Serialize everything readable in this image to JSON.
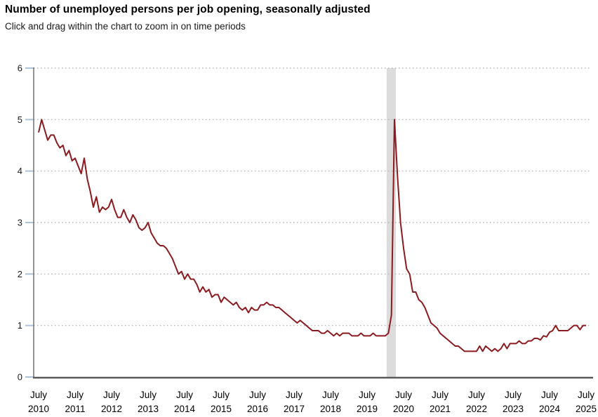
{
  "header": {
    "title": "Number of unemployed persons per job opening, seasonally adjusted",
    "subtitle": "Click and drag within the chart to zoom in on time periods"
  },
  "chart_data": {
    "type": "line",
    "title": "Number of unemployed persons per job opening, seasonally adjusted",
    "subtitle": "Click and drag within the chart to zoom in on time periods",
    "ylabel": "",
    "xlabel": "",
    "ylim": [
      0,
      6
    ],
    "y_ticks": [
      0,
      1,
      2,
      3,
      4,
      5,
      6
    ],
    "x_ticks": [
      {
        "month": "July",
        "year": "2010"
      },
      {
        "month": "July",
        "year": "2011"
      },
      {
        "month": "July",
        "year": "2012"
      },
      {
        "month": "July",
        "year": "2013"
      },
      {
        "month": "July",
        "year": "2014"
      },
      {
        "month": "July",
        "year": "2015"
      },
      {
        "month": "July",
        "year": "2016"
      },
      {
        "month": "July",
        "year": "2017"
      },
      {
        "month": "July",
        "year": "2018"
      },
      {
        "month": "July",
        "year": "2019"
      },
      {
        "month": "July",
        "year": "2020"
      },
      {
        "month": "July",
        "year": "2021"
      },
      {
        "month": "July",
        "year": "2022"
      },
      {
        "month": "July",
        "year": "2023"
      },
      {
        "month": "July",
        "year": "2024"
      },
      {
        "month": "July",
        "year": "2025"
      }
    ],
    "grid": "dotted-horizontal",
    "legend": "none",
    "recession_band": {
      "from": "2020-02",
      "to": "2020-04"
    },
    "series": [
      {
        "name": "Unemployed persons per job opening",
        "start": "2010-07",
        "end": "2025-07",
        "frequency": "monthly",
        "values": [
          4.75,
          5.0,
          4.8,
          4.6,
          4.7,
          4.7,
          4.55,
          4.45,
          4.5,
          4.3,
          4.4,
          4.2,
          4.25,
          4.1,
          3.95,
          4.25,
          3.85,
          3.6,
          3.3,
          3.5,
          3.2,
          3.3,
          3.25,
          3.3,
          3.45,
          3.25,
          3.1,
          3.1,
          3.25,
          3.1,
          3.0,
          3.15,
          3.05,
          2.9,
          2.85,
          2.9,
          3.0,
          2.8,
          2.7,
          2.6,
          2.55,
          2.55,
          2.5,
          2.4,
          2.3,
          2.15,
          2.0,
          2.05,
          1.9,
          2.0,
          1.9,
          1.9,
          1.8,
          1.65,
          1.75,
          1.65,
          1.7,
          1.55,
          1.6,
          1.6,
          1.45,
          1.55,
          1.5,
          1.45,
          1.4,
          1.45,
          1.35,
          1.3,
          1.35,
          1.25,
          1.35,
          1.3,
          1.3,
          1.4,
          1.4,
          1.45,
          1.4,
          1.4,
          1.35,
          1.35,
          1.3,
          1.25,
          1.2,
          1.15,
          1.1,
          1.05,
          1.1,
          1.05,
          1.0,
          0.95,
          0.9,
          0.9,
          0.9,
          0.85,
          0.85,
          0.9,
          0.85,
          0.8,
          0.85,
          0.8,
          0.85,
          0.85,
          0.85,
          0.8,
          0.8,
          0.8,
          0.85,
          0.8,
          0.8,
          0.8,
          0.85,
          0.8,
          0.8,
          0.8,
          0.8,
          0.85,
          1.2,
          5.0,
          3.9,
          3.0,
          2.5,
          2.1,
          2.0,
          1.65,
          1.65,
          1.5,
          1.45,
          1.35,
          1.2,
          1.05,
          1.0,
          0.95,
          0.85,
          0.8,
          0.75,
          0.7,
          0.65,
          0.6,
          0.6,
          0.55,
          0.5,
          0.5,
          0.5,
          0.5,
          0.5,
          0.6,
          0.5,
          0.6,
          0.55,
          0.5,
          0.55,
          0.5,
          0.55,
          0.65,
          0.55,
          0.65,
          0.65,
          0.65,
          0.7,
          0.65,
          0.65,
          0.7,
          0.7,
          0.75,
          0.75,
          0.72,
          0.8,
          0.78,
          0.87,
          0.9,
          1.0,
          0.9,
          0.9,
          0.9,
          0.9,
          0.95,
          1.0,
          1.0,
          0.92,
          1.0,
          1.0
        ]
      }
    ],
    "colors": {
      "line": "#8b1b1e",
      "recession_band": "#dcdcdc",
      "gridline": "#a9a9a9",
      "y_axis": "#737373",
      "x_axis": "#595959",
      "tick_mark": "#aec2d8",
      "tick_label": "#1a1a1a",
      "x_label": "#000000"
    }
  }
}
